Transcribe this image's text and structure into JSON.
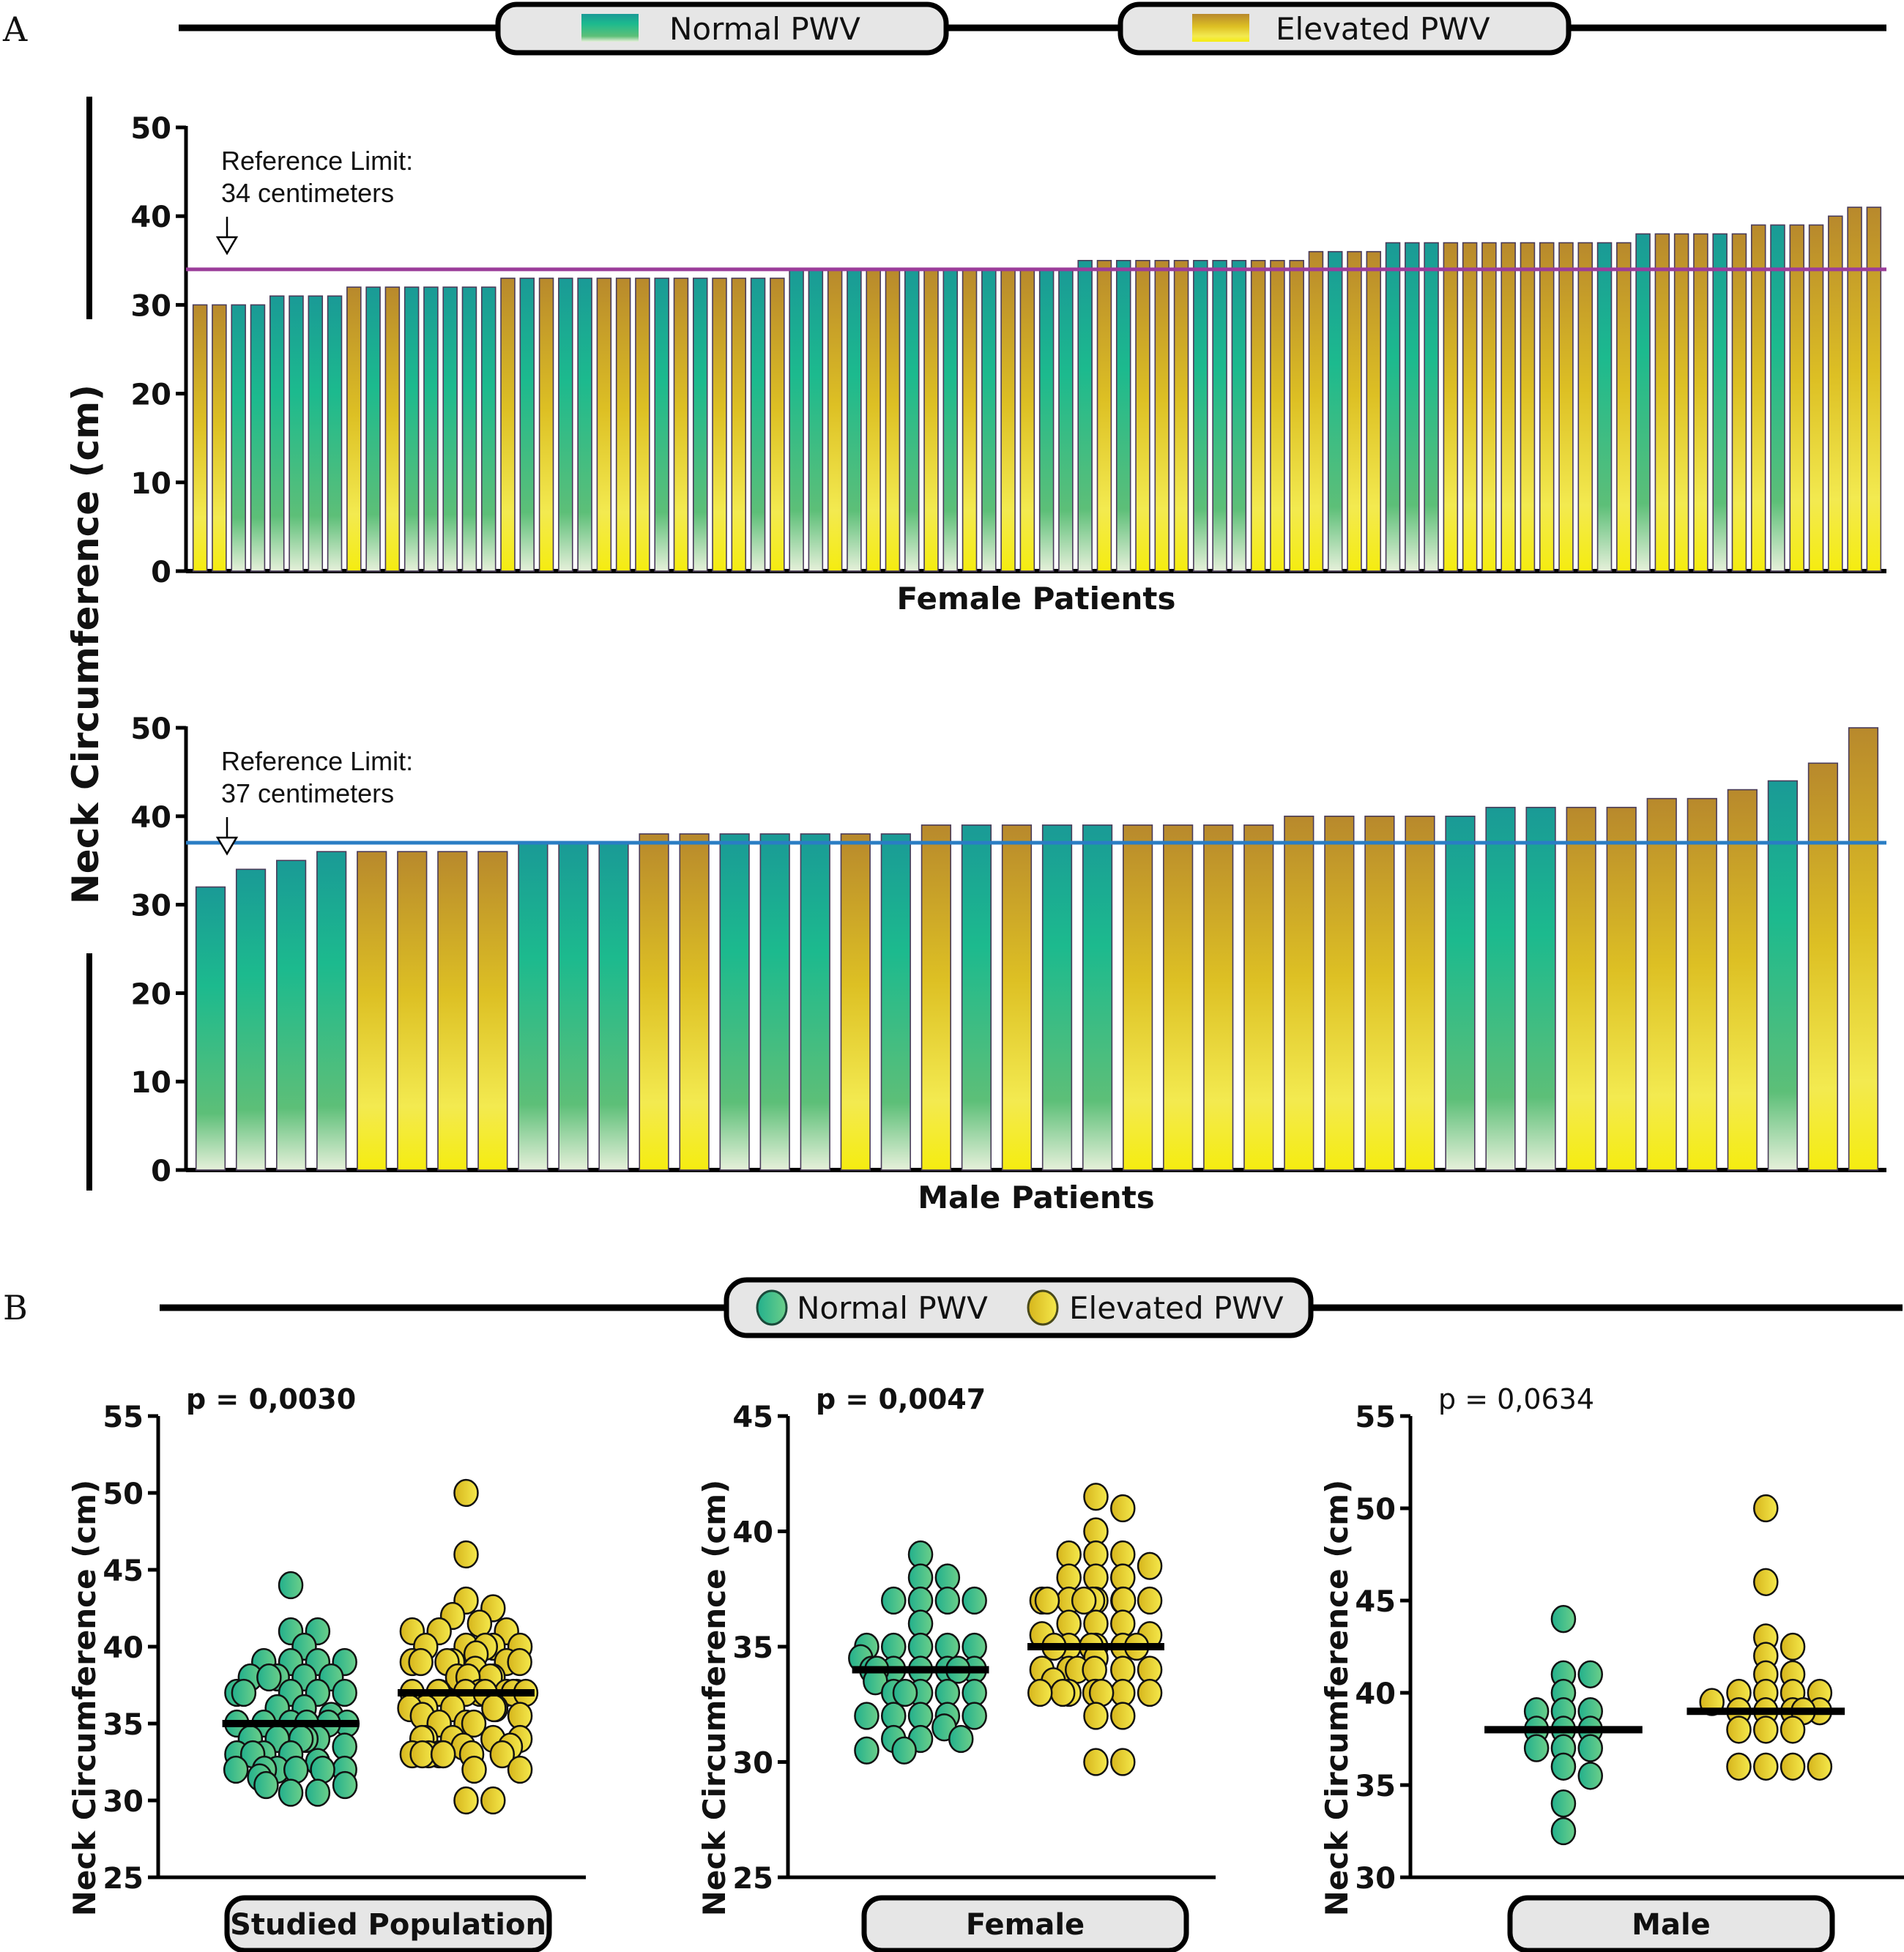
{
  "panel_labels": {
    "a": "A",
    "b": "B"
  },
  "legend_a": {
    "normal": "Normal PWV",
    "elevated": "Elevated PWV"
  },
  "legend_b": {
    "normal": "Normal PWV",
    "elevated": "Elevated PWV"
  },
  "colors": {
    "normal_top": "#1a9a96",
    "normal_mid": "#1cba8e",
    "normal_bottom": "#e8f0d8",
    "elevated_top": "#b8892c",
    "elevated_mid": "#e0c324",
    "elevated_bottom": "#f5ec20",
    "female_ref_line": "#9b3d9a",
    "male_ref_line": "#2a7dc4",
    "dot_normal": "#2fbf8f",
    "dot_elevated": "#ecd22a",
    "pill_fill": "#e6e6e6"
  },
  "panel_a_ylabel": "Neck Circumference (cm)",
  "chart_data": [
    {
      "type": "bar",
      "id": "female",
      "xlabel": "Female Patients",
      "ylabel": "Neck Circumference (cm)",
      "ylim": [
        0,
        50
      ],
      "yticks": [
        "0",
        "10",
        "20",
        "30",
        "40",
        "50"
      ],
      "reference_line": {
        "value": 34,
        "label_line1": "Reference Limit:",
        "label_line2": "34 centimeters"
      },
      "values": [
        30,
        30,
        30,
        30,
        31,
        31,
        31,
        31,
        32,
        32,
        32,
        32,
        32,
        32,
        32,
        32,
        33,
        33,
        33,
        33,
        33,
        33,
        33,
        33,
        33,
        33,
        33,
        33,
        33,
        33,
        33,
        34,
        34,
        34,
        34,
        34,
        34,
        34,
        34,
        34,
        34,
        34,
        34,
        34,
        34,
        34,
        35,
        35,
        35,
        35,
        35,
        35,
        35,
        35,
        35,
        35,
        35,
        35,
        36,
        36,
        36,
        36,
        37,
        37,
        37,
        37,
        37,
        37,
        37,
        37,
        37,
        37,
        37,
        37,
        37,
        38,
        38,
        38,
        38,
        38,
        38,
        39,
        39,
        39,
        39,
        40,
        41,
        41
      ],
      "groups": [
        "E",
        "E",
        "N",
        "N",
        "N",
        "N",
        "N",
        "N",
        "E",
        "N",
        "E",
        "N",
        "N",
        "N",
        "N",
        "N",
        "E",
        "N",
        "E",
        "N",
        "N",
        "E",
        "E",
        "E",
        "N",
        "E",
        "N",
        "E",
        "E",
        "N",
        "E",
        "N",
        "N",
        "E",
        "N",
        "E",
        "E",
        "N",
        "E",
        "N",
        "E",
        "N",
        "E",
        "E",
        "N",
        "N",
        "N",
        "E",
        "N",
        "E",
        "E",
        "E",
        "N",
        "N",
        "N",
        "E",
        "E",
        "E",
        "E",
        "N",
        "E",
        "E",
        "N",
        "N",
        "N",
        "E",
        "E",
        "E",
        "E",
        "E",
        "E",
        "E",
        "E",
        "N",
        "E",
        "N",
        "E",
        "E",
        "E",
        "N",
        "E",
        "E",
        "N",
        "E",
        "E",
        "E",
        "E",
        "E"
      ]
    },
    {
      "type": "bar",
      "id": "male",
      "xlabel": "Male Patients",
      "ylabel": "Neck Circumference (cm)",
      "ylim": [
        0,
        50
      ],
      "yticks": [
        "0",
        "10",
        "20",
        "30",
        "40",
        "50"
      ],
      "reference_line": {
        "value": 37,
        "label_line1": "Reference Limit:",
        "label_line2": "37 centimeters"
      },
      "values": [
        32,
        34,
        35,
        36,
        36,
        36,
        36,
        36,
        37,
        37,
        37,
        38,
        38,
        38,
        38,
        38,
        38,
        38,
        39,
        39,
        39,
        39,
        39,
        39,
        39,
        39,
        39,
        40,
        40,
        40,
        40,
        40,
        41,
        41,
        41,
        41,
        42,
        42,
        43,
        44,
        46,
        50
      ],
      "groups": [
        "N",
        "N",
        "N",
        "N",
        "E",
        "E",
        "E",
        "E",
        "N",
        "N",
        "N",
        "E",
        "E",
        "N",
        "N",
        "N",
        "E",
        "N",
        "E",
        "N",
        "E",
        "N",
        "N",
        "E",
        "E",
        "E",
        "E",
        "E",
        "E",
        "E",
        "E",
        "N",
        "N",
        "N",
        "E",
        "E",
        "E",
        "E",
        "E",
        "N",
        "E",
        "E"
      ]
    },
    {
      "type": "scatter",
      "id": "studied-population",
      "title": "p = 0,0030",
      "title_bold": true,
      "category_label": "Studied Population",
      "ylabel": "Neck Circumference (cm)",
      "ylim": [
        25,
        55
      ],
      "yticks": [
        "25",
        "30",
        "35",
        "40",
        "45",
        "50",
        "55"
      ],
      "series": [
        {
          "name": "Normal PWV",
          "median": 35,
          "values": [
            44,
            41,
            41,
            40,
            39,
            39,
            39,
            39,
            38,
            38,
            38,
            38,
            38,
            37,
            37,
            37,
            37,
            37,
            36,
            36,
            35.5,
            35,
            35,
            35,
            35,
            35,
            35,
            34,
            34,
            34,
            34,
            34,
            33.5,
            33,
            33,
            33,
            33,
            32.5,
            32,
            32,
            32,
            32,
            32,
            32,
            31.5,
            31,
            31,
            30.5,
            30.5
          ]
        },
        {
          "name": "Elevated PWV",
          "median": 37,
          "values": [
            50,
            46,
            43,
            42.5,
            42,
            41.5,
            41,
            41,
            41,
            40,
            40,
            40,
            40,
            40,
            39.5,
            39,
            39,
            39,
            39,
            39,
            39,
            38.5,
            38,
            38,
            38,
            38,
            37,
            37,
            37,
            37,
            37,
            37,
            37,
            37,
            37,
            37,
            36,
            36,
            36,
            36,
            36,
            35.5,
            35.5,
            35,
            35,
            35,
            34,
            34,
            34,
            34,
            34,
            33.5,
            33,
            33,
            33,
            33,
            33,
            33,
            33,
            33,
            33.5,
            32,
            32,
            30,
            30
          ]
        }
      ]
    },
    {
      "type": "scatter",
      "id": "female-scatter",
      "title": "p = 0,0047",
      "title_bold": true,
      "category_label": "Female",
      "ylabel": "Neck Circumference (cm)",
      "ylim": [
        25,
        45
      ],
      "yticks": [
        "25",
        "30",
        "35",
        "40",
        "45"
      ],
      "series": [
        {
          "name": "Normal PWV",
          "median": 34,
          "values": [
            39,
            38,
            38,
            37,
            37,
            37,
            37,
            36,
            35,
            35,
            35,
            35,
            35,
            34.5,
            34,
            34,
            34,
            34,
            34,
            34,
            34,
            33.5,
            33,
            33,
            33,
            33,
            33,
            32,
            32,
            32,
            32,
            32,
            31.5,
            31,
            31,
            31,
            30.5,
            30.5
          ]
        },
        {
          "name": "Elevated PWV",
          "median": 35,
          "values": [
            41.5,
            41,
            40,
            39,
            39,
            39,
            38.5,
            38,
            38,
            38,
            37,
            37,
            37,
            37,
            37,
            37,
            37,
            37,
            37,
            36,
            36,
            36,
            35.5,
            35.5,
            35,
            35,
            35,
            35,
            35,
            35,
            34.5,
            34,
            34,
            34,
            34,
            34,
            34,
            33.5,
            33,
            33,
            33,
            33,
            33,
            33,
            33,
            33,
            32,
            32,
            30,
            30
          ]
        }
      ]
    },
    {
      "type": "scatter",
      "id": "male-scatter",
      "title": "p = 0,0634",
      "title_bold": false,
      "category_label": "Male",
      "ylabel": "Neck Circumference (cm)",
      "ylim": [
        30,
        55
      ],
      "yticks": [
        "30",
        "35",
        "40",
        "45",
        "50",
        "55"
      ],
      "series": [
        {
          "name": "Normal PWV",
          "median": 38,
          "values": [
            44,
            41,
            41,
            40,
            39,
            39,
            39,
            38,
            38,
            38,
            37,
            37,
            37,
            36,
            35.5,
            34,
            32.5
          ]
        },
        {
          "name": "Elevated PWV",
          "median": 39,
          "values": [
            50,
            46,
            43,
            42.5,
            42,
            41,
            41,
            40,
            40,
            40,
            40,
            39.5,
            39,
            39,
            39,
            39,
            39,
            38,
            38,
            38,
            36,
            36,
            36,
            36
          ]
        }
      ]
    }
  ]
}
